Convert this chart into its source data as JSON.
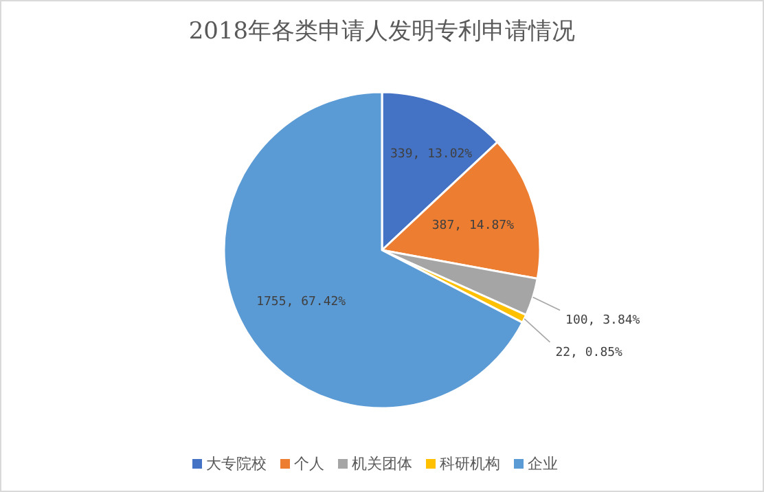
{
  "chart_data": {
    "type": "pie",
    "title": "2018年各类申请人发明专利申请情况",
    "categories": [
      "大专院校",
      "个人",
      "机关团体",
      "科研机构",
      "企业"
    ],
    "values": [
      339,
      387,
      100,
      22,
      1755
    ],
    "colors": [
      "#4472c4",
      "#ed7d31",
      "#a5a5a5",
      "#ffc000",
      "#5b9bd5"
    ],
    "value_labels": [
      "339, 13.02%",
      "387, 14.87%",
      "100, 3.84%",
      "22, 0.85%",
      "1755, 67.42%"
    ],
    "legend": "bottom"
  }
}
